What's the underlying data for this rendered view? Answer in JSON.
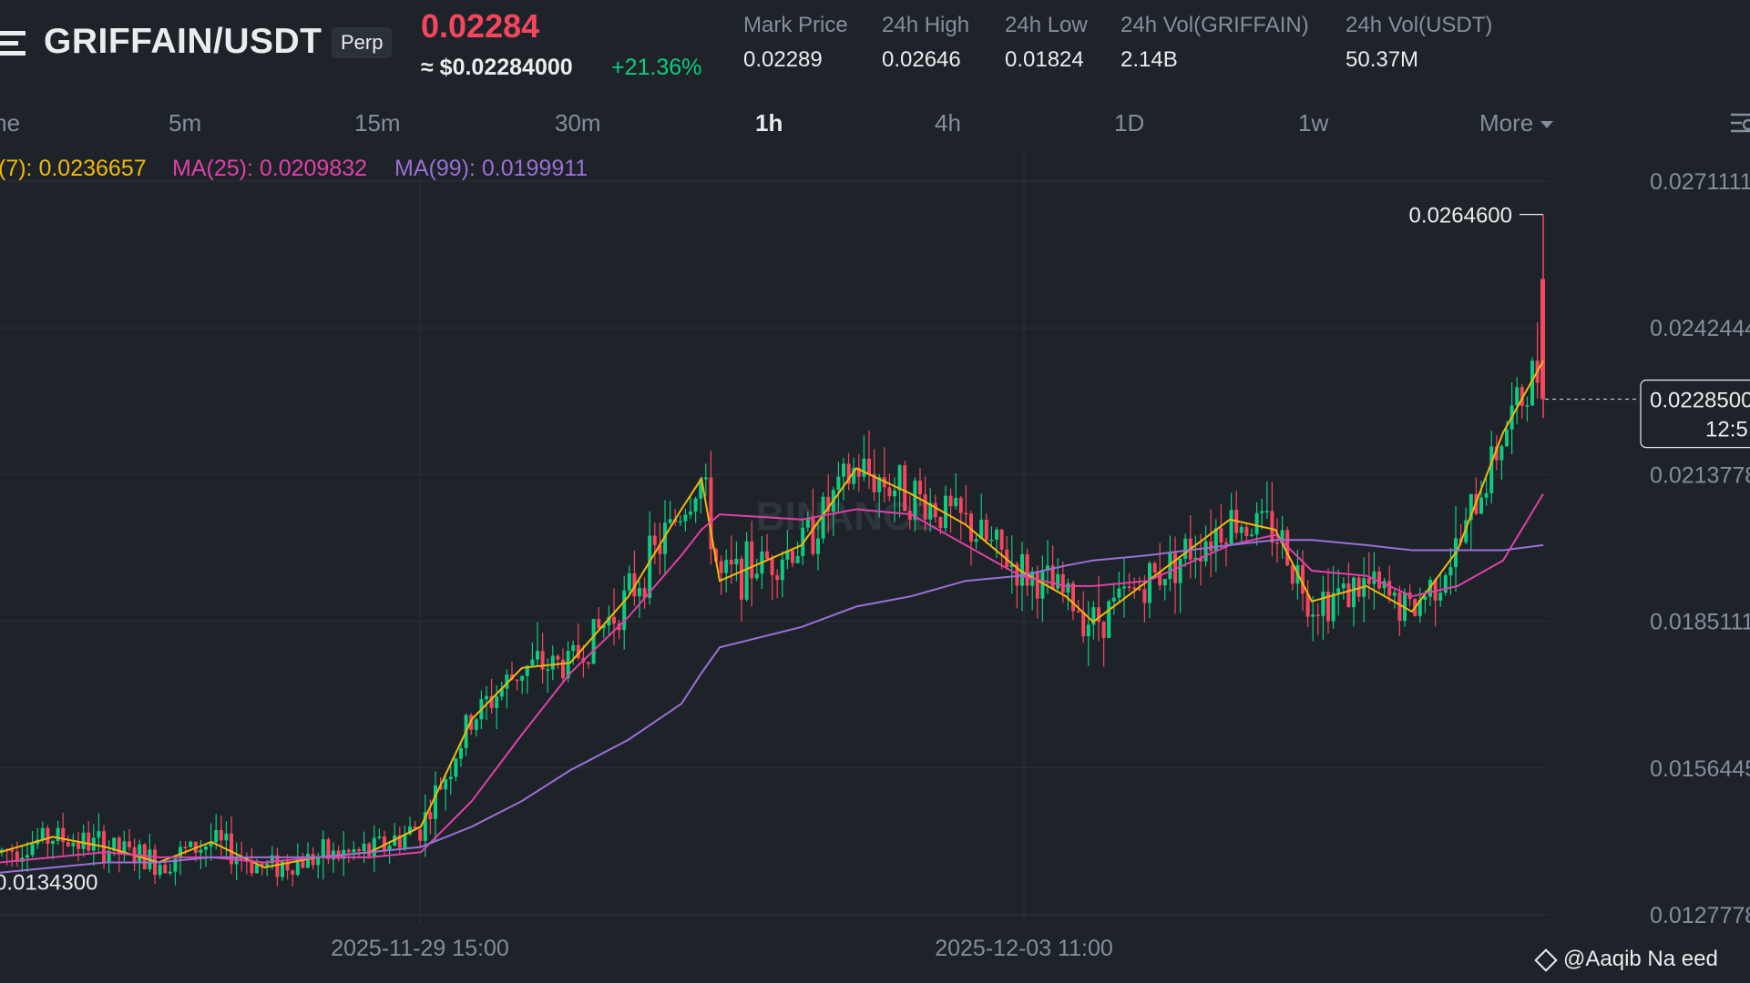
{
  "header": {
    "pair": "GRIFFAIN/USDT",
    "contract_type": "Perp",
    "last_price": "0.02284",
    "usd_price": "≈ $0.02284000",
    "change_pct": "+21.36%",
    "stats": [
      {
        "label": "Mark Price",
        "value": "0.02289"
      },
      {
        "label": "24h High",
        "value": "0.02646"
      },
      {
        "label": "24h Low",
        "value": "0.01824"
      },
      {
        "label": "24h Vol(GRIFFAIN)",
        "value": "2.14B"
      },
      {
        "label": "24h Vol(USDT)",
        "value": "50.37M"
      }
    ]
  },
  "timeframes": {
    "items": [
      "me",
      "5m",
      "15m",
      "30m",
      "1h",
      "4h",
      "1D",
      "1w"
    ],
    "active": "1h",
    "more_label": "More"
  },
  "indicators": {
    "ma7": {
      "label": "(7): 0.0236657",
      "color": "#f0b90b"
    },
    "ma25": {
      "label": "MA(25): 0.0209832",
      "color": "#e040a8"
    },
    "ma99": {
      "label": "MA(99): 0.0199911",
      "color": "#9b6fd6"
    }
  },
  "watermark": "@Aaqib  Na  eed",
  "colors": {
    "up": "#0ecb81",
    "down": "#f6465d",
    "bg": "#1e2329"
  },
  "chart_data": {
    "type": "candlestick",
    "interval": "1h",
    "y_axis_ticks": [
      "0.0271111",
      "0.0242444",
      "0.0213778",
      "0.0185111",
      "0.0156445",
      "0.0127778"
    ],
    "ylim": [
      0.0127778,
      0.0271111
    ],
    "x_tick_labels": [
      "2025-11-29 15:00",
      "2025-12-03 11:00"
    ],
    "current_price_label": "0.0228500",
    "countdown_label": "12:5",
    "high_marker": "0.0264600",
    "low_marker": "0.0134300",
    "series": [
      {
        "name": "MA(7)",
        "values": [
          0.014,
          0.0143,
          0.0141,
          0.0138,
          0.0142,
          0.0137,
          0.0139,
          0.014,
          0.0145,
          0.0166,
          0.0176,
          0.0177,
          0.019,
          0.0207,
          0.0213,
          0.0193,
          0.02,
          0.0215,
          0.021,
          0.0204,
          0.0195,
          0.019,
          0.0185,
          0.0193,
          0.0205,
          0.0203,
          0.0189,
          0.0192,
          0.0187,
          0.0199,
          0.0222,
          0.0236
        ]
      },
      {
        "name": "MA(25)",
        "values": [
          0.0138,
          0.0139,
          0.014,
          0.0139,
          0.0139,
          0.0138,
          0.0139,
          0.0139,
          0.014,
          0.015,
          0.0163,
          0.0175,
          0.0186,
          0.0198,
          0.0203,
          0.0206,
          0.0205,
          0.0207,
          0.0206,
          0.02,
          0.0194,
          0.0192,
          0.0192,
          0.0193,
          0.02,
          0.0202,
          0.0195,
          0.0194,
          0.019,
          0.0192,
          0.0197,
          0.021
        ]
      },
      {
        "name": "MA(99)",
        "values": [
          0.0136,
          0.0137,
          0.0138,
          0.0138,
          0.0139,
          0.0139,
          0.0139,
          0.014,
          0.0141,
          0.0145,
          0.015,
          0.0156,
          0.0162,
          0.0169,
          0.0175,
          0.018,
          0.0184,
          0.0188,
          0.019,
          0.0193,
          0.0194,
          0.0196,
          0.0197,
          0.0198,
          0.02,
          0.0201,
          0.0201,
          0.02,
          0.0199,
          0.0199,
          0.0199,
          0.02
        ]
      }
    ]
  }
}
